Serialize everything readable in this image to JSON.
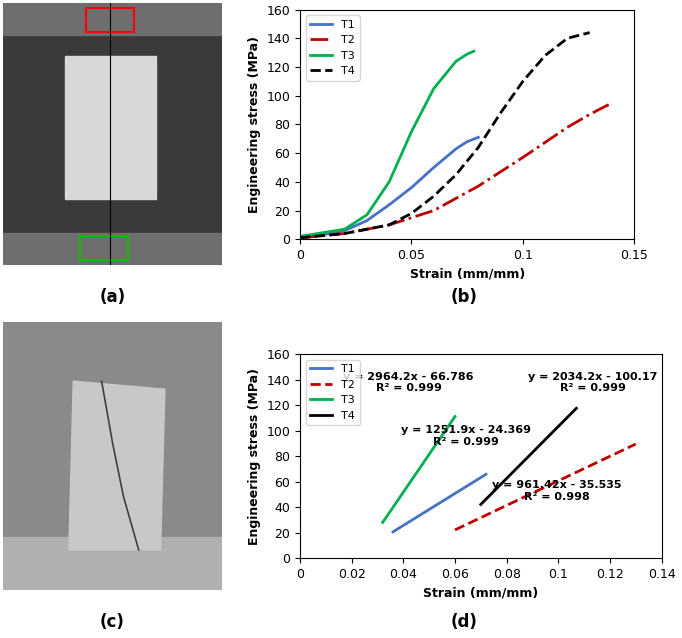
{
  "panel_labels": [
    "(a)",
    "(b)",
    "(c)",
    "(d)"
  ],
  "chart_data": [
    {
      "type": "line",
      "x_label": "Strain (mm/mm)",
      "y_label": "Engineering stress (MPa)",
      "xlim": [
        0,
        0.15
      ],
      "xticks": [
        0,
        0.05,
        0.1,
        0.15
      ],
      "ylim": [
        0,
        160
      ],
      "yticks": [
        0,
        20,
        40,
        60,
        80,
        100,
        120,
        140,
        160
      ],
      "grid": false,
      "legend": "upper left",
      "series": [
        {
          "name": "T1",
          "color": "#4472c4",
          "line_style": "solid",
          "x": [
            0,
            0.01,
            0.02,
            0.03,
            0.04,
            0.05,
            0.06,
            0.07,
            0.075,
            0.08
          ],
          "values": [
            2,
            3,
            6,
            13,
            24,
            36,
            50,
            63,
            68,
            71
          ]
        },
        {
          "name": "T2",
          "color": "#c00000",
          "line_style": "dashdot",
          "x": [
            0,
            0.02,
            0.04,
            0.06,
            0.08,
            0.1,
            0.12,
            0.13,
            0.14
          ],
          "values": [
            1,
            4,
            10,
            20,
            37,
            57,
            78,
            87,
            95
          ]
        },
        {
          "name": "T3",
          "color": "#00b050",
          "line_style": "solid",
          "x": [
            0,
            0.02,
            0.03,
            0.04,
            0.05,
            0.06,
            0.07,
            0.075,
            0.078
          ],
          "values": [
            2,
            7,
            17,
            40,
            75,
            105,
            124,
            129,
            131
          ]
        },
        {
          "name": "T4",
          "color": "#000000",
          "line_style": "dashed",
          "x": [
            0,
            0.02,
            0.04,
            0.05,
            0.06,
            0.07,
            0.08,
            0.09,
            0.1,
            0.11,
            0.12,
            0.13
          ],
          "values": [
            1,
            4,
            10,
            18,
            30,
            45,
            64,
            88,
            110,
            128,
            140,
            144
          ]
        }
      ]
    },
    {
      "type": "line",
      "x_label": "Strain (mm/mm)",
      "y_label": "Engineering stress (MPa)",
      "xlim": [
        0,
        0.14
      ],
      "xticks": [
        0,
        0.02,
        0.04,
        0.06,
        0.08,
        0.1,
        0.12,
        0.14
      ],
      "ylim": [
        0,
        160
      ],
      "yticks": [
        0,
        20,
        40,
        60,
        80,
        100,
        120,
        140,
        160
      ],
      "grid": false,
      "legend": "upper left",
      "series": [
        {
          "name": "T1",
          "color": "#4472c4",
          "line_style": "solid",
          "x": [
            0.036,
            0.072
          ],
          "values": [
            20.7,
            65.8
          ]
        },
        {
          "name": "T2",
          "color": "#c00000",
          "line_style": "dashed",
          "x": [
            0.06,
            0.13
          ],
          "values": [
            22.2,
            89.5
          ]
        },
        {
          "name": "T3",
          "color": "#00b050",
          "line_style": "solid",
          "x": [
            0.032,
            0.06
          ],
          "values": [
            28.1,
            111.1
          ]
        },
        {
          "name": "T4",
          "color": "#000000",
          "line_style": "solid",
          "x": [
            0.07,
            0.107
          ],
          "values": [
            42.2,
            117.5
          ]
        }
      ],
      "annotations": [
        "y = 2964.2x - 66.786\nR² = 0.999",
        "y = 2034.2x - 100.17\nR² = 0.999",
        "y = 1251.9x - 24.369\nR² = 0.999",
        "y = 961.42x - 35.535\nR² = 0.998"
      ]
    }
  ]
}
